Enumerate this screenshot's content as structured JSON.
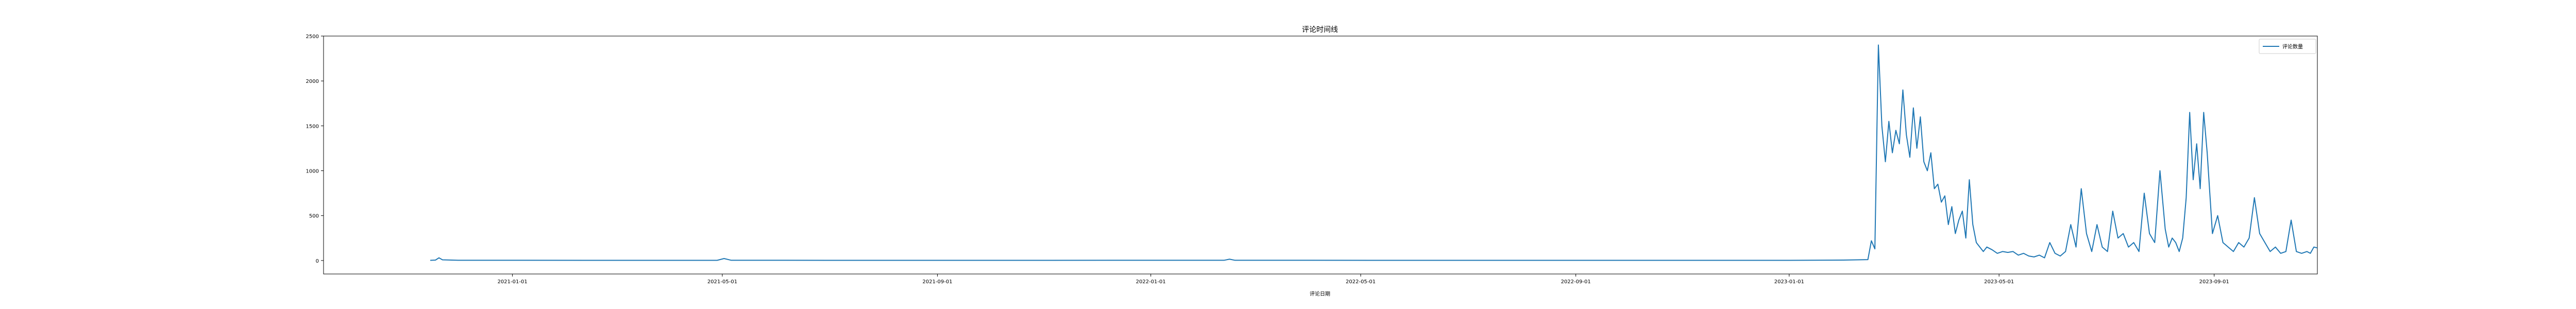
{
  "chart_data": {
    "type": "line",
    "title": "评论时间线",
    "xlabel": "评论日期",
    "ylabel": "",
    "xlim": [
      "2020-09-15",
      "2023-10-30"
    ],
    "ylim": [
      -150,
      2500
    ],
    "grid": false,
    "legend_position": "top-right",
    "colors": {
      "line": "#1f77b4",
      "axis": "#000000",
      "legend_border": "#cccccc"
    },
    "x_ticks": [
      "2021-01-01",
      "2021-05-01",
      "2021-09-01",
      "2022-01-01",
      "2022-05-01",
      "2022-09-01",
      "2023-01-01",
      "2023-05-01",
      "2023-09-01"
    ],
    "y_ticks": [
      0,
      500,
      1000,
      1500,
      2000,
      2500
    ],
    "series": [
      {
        "name": "评论数量",
        "x": [
          "2020-11-15",
          "2020-11-18",
          "2020-11-20",
          "2020-11-22",
          "2020-12-01",
          "2021-03-01",
          "2021-04-28",
          "2021-05-02",
          "2021-05-06",
          "2021-07-01",
          "2021-10-01",
          "2022-02-12",
          "2022-02-15",
          "2022-02-18",
          "2022-06-01",
          "2022-10-01",
          "2023-01-01",
          "2023-02-01",
          "2023-02-15",
          "2023-02-17",
          "2023-02-19",
          "2023-02-21",
          "2023-02-23",
          "2023-02-25",
          "2023-02-27",
          "2023-03-01",
          "2023-03-03",
          "2023-03-05",
          "2023-03-07",
          "2023-03-09",
          "2023-03-11",
          "2023-03-13",
          "2023-03-15",
          "2023-03-17",
          "2023-03-19",
          "2023-03-21",
          "2023-03-23",
          "2023-03-25",
          "2023-03-27",
          "2023-03-29",
          "2023-03-31",
          "2023-04-02",
          "2023-04-04",
          "2023-04-06",
          "2023-04-08",
          "2023-04-10",
          "2023-04-12",
          "2023-04-14",
          "2023-04-16",
          "2023-04-18",
          "2023-04-20",
          "2023-04-22",
          "2023-04-24",
          "2023-04-27",
          "2023-04-30",
          "2023-05-03",
          "2023-05-06",
          "2023-05-09",
          "2023-05-12",
          "2023-05-15",
          "2023-05-18",
          "2023-05-21",
          "2023-05-24",
          "2023-05-27",
          "2023-05-30",
          "2023-06-02",
          "2023-06-05",
          "2023-06-08",
          "2023-06-11",
          "2023-06-14",
          "2023-06-17",
          "2023-06-20",
          "2023-06-23",
          "2023-06-26",
          "2023-06-29",
          "2023-07-02",
          "2023-07-05",
          "2023-07-08",
          "2023-07-11",
          "2023-07-14",
          "2023-07-17",
          "2023-07-20",
          "2023-07-23",
          "2023-07-26",
          "2023-07-29",
          "2023-08-01",
          "2023-08-04",
          "2023-08-06",
          "2023-08-08",
          "2023-08-10",
          "2023-08-12",
          "2023-08-14",
          "2023-08-16",
          "2023-08-18",
          "2023-08-20",
          "2023-08-22",
          "2023-08-24",
          "2023-08-26",
          "2023-08-28",
          "2023-08-31",
          "2023-09-03",
          "2023-09-06",
          "2023-09-09",
          "2023-09-12",
          "2023-09-15",
          "2023-09-18",
          "2023-09-21",
          "2023-09-24",
          "2023-09-27",
          "2023-09-30",
          "2023-10-03",
          "2023-10-06",
          "2023-10-09",
          "2023-10-12",
          "2023-10-15",
          "2023-10-18",
          "2023-10-21",
          "2023-10-24",
          "2023-10-26",
          "2023-10-28",
          "2023-10-30"
        ],
        "values": [
          2,
          5,
          30,
          8,
          3,
          2,
          2,
          22,
          3,
          2,
          2,
          3,
          15,
          3,
          2,
          2,
          2,
          5,
          10,
          220,
          130,
          2400,
          1500,
          1100,
          1550,
          1200,
          1450,
          1300,
          1900,
          1400,
          1150,
          1700,
          1250,
          1600,
          1100,
          1000,
          1200,
          800,
          850,
          650,
          720,
          400,
          600,
          300,
          450,
          550,
          250,
          900,
          400,
          200,
          150,
          100,
          150,
          120,
          80,
          100,
          90,
          100,
          60,
          80,
          50,
          40,
          60,
          30,
          200,
          80,
          50,
          100,
          400,
          150,
          800,
          300,
          100,
          400,
          150,
          100,
          550,
          250,
          300,
          150,
          200,
          100,
          750,
          300,
          200,
          1000,
          350,
          150,
          250,
          200,
          100,
          250,
          700,
          1650,
          900,
          1300,
          800,
          1650,
          1200,
          300,
          500,
          200,
          150,
          100,
          200,
          150,
          250,
          700,
          300,
          200,
          100,
          150,
          80,
          100,
          450,
          100,
          80,
          100,
          80,
          150,
          140
        ]
      }
    ]
  }
}
